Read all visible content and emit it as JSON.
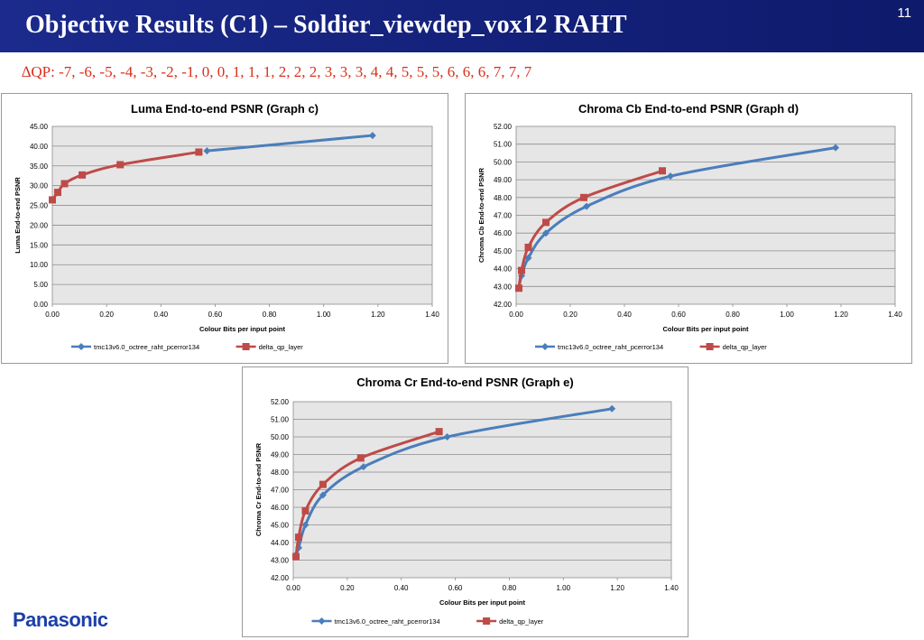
{
  "header": {
    "title": "Objective Results (C1) – Soldier_viewdep_vox12 RAHT",
    "slide_number": "11",
    "delta_qp": "∆QP: -7, -6, -5, -4, -3, -2, -1, 0, 0, 1, 1, 1, 2, 2, 2, 3, 3, 3, 4, 4, 5, 5, 5, 6, 6, 6, 7, 7, 7"
  },
  "logo": "Panasonic",
  "colors": {
    "header_bg": "#1b2a8c",
    "series_blue": "#4a7ebb",
    "series_red": "#be4b48",
    "plot_bg": "#e6e6e6"
  },
  "chart_data": [
    {
      "type": "line",
      "title": "Luma End-to-end PSNR (Graph c)",
      "xlabel": "Colour  Bits per input point",
      "ylabel": "Luma End-to-end PSNR",
      "xlim": [
        0,
        1.4
      ],
      "ylim": [
        0,
        45
      ],
      "xticks": [
        "0.00",
        "0.20",
        "0.40",
        "0.60",
        "0.80",
        "1.00",
        "1.20",
        "1.40"
      ],
      "yticks": [
        "0.00",
        "5.00",
        "10.00",
        "15.00",
        "20.00",
        "25.00",
        "30.00",
        "35.00",
        "40.00",
        "45.00"
      ],
      "grid": true,
      "legend": "bottom",
      "series": [
        {
          "name": "tmc13v6.0_octree_raht_pcerror134",
          "color": "#4a7ebb",
          "marker": "diamond",
          "x": [
            0.57,
            1.18
          ],
          "y": [
            38.8,
            42.7
          ]
        },
        {
          "name": "delta_qp_layer",
          "color": "#be4b48",
          "marker": "square",
          "x": [
            0.0,
            0.02,
            0.045,
            0.11,
            0.25,
            0.54
          ],
          "y": [
            26.4,
            28.3,
            30.5,
            32.7,
            35.3,
            38.5
          ]
        }
      ]
    },
    {
      "type": "line",
      "title": "Chroma Cb End-to-end PSNR (Graph d)",
      "xlabel": "Colour  Bits per input point",
      "ylabel": "Chroma Cb End-to-end PSNR",
      "xlim": [
        0,
        1.4
      ],
      "ylim": [
        42,
        52
      ],
      "xticks": [
        "0.00",
        "0.20",
        "0.40",
        "0.60",
        "0.80",
        "1.00",
        "1.20",
        "1.40"
      ],
      "yticks": [
        "42.00",
        "43.00",
        "44.00",
        "45.00",
        "46.00",
        "47.00",
        "48.00",
        "49.00",
        "50.00",
        "51.00",
        "52.00"
      ],
      "grid": true,
      "legend": "bottom",
      "series": [
        {
          "name": "tmc13v6.0_octree_raht_pcerror134",
          "color": "#4a7ebb",
          "marker": "diamond",
          "x": [
            0.01,
            0.02,
            0.045,
            0.11,
            0.26,
            0.57,
            1.18
          ],
          "y": [
            42.9,
            43.6,
            44.6,
            46.0,
            47.5,
            49.2,
            50.8
          ]
        },
        {
          "name": "delta_qp_layer",
          "color": "#be4b48",
          "marker": "square",
          "x": [
            0.01,
            0.02,
            0.045,
            0.11,
            0.25,
            0.54
          ],
          "y": [
            42.9,
            43.9,
            45.2,
            46.6,
            48.0,
            49.5
          ]
        }
      ]
    },
    {
      "type": "line",
      "title": "Chroma Cr End-to-end PSNR (Graph e)",
      "xlabel": "Colour  Bits per input point",
      "ylabel": "Chroma Cr End-to-end PSNR",
      "xlim": [
        0,
        1.4
      ],
      "ylim": [
        42,
        52
      ],
      "xticks": [
        "0.00",
        "0.20",
        "0.40",
        "0.60",
        "0.80",
        "1.00",
        "1.20",
        "1.40"
      ],
      "yticks": [
        "42.00",
        "43.00",
        "44.00",
        "45.00",
        "46.00",
        "47.00",
        "48.00",
        "49.00",
        "50.00",
        "51.00",
        "52.00"
      ],
      "grid": true,
      "legend": "bottom",
      "series": [
        {
          "name": "tmc13v6.0_octree_raht_pcerror134",
          "color": "#4a7ebb",
          "marker": "diamond",
          "x": [
            0.01,
            0.02,
            0.045,
            0.11,
            0.26,
            0.57,
            1.18
          ],
          "y": [
            43.3,
            43.7,
            45.0,
            46.7,
            48.3,
            50.0,
            51.6
          ]
        },
        {
          "name": "delta_qp_layer",
          "color": "#be4b48",
          "marker": "square",
          "x": [
            0.01,
            0.02,
            0.045,
            0.11,
            0.25,
            0.54
          ],
          "y": [
            43.2,
            44.3,
            45.8,
            47.3,
            48.8,
            50.3
          ]
        }
      ]
    }
  ]
}
